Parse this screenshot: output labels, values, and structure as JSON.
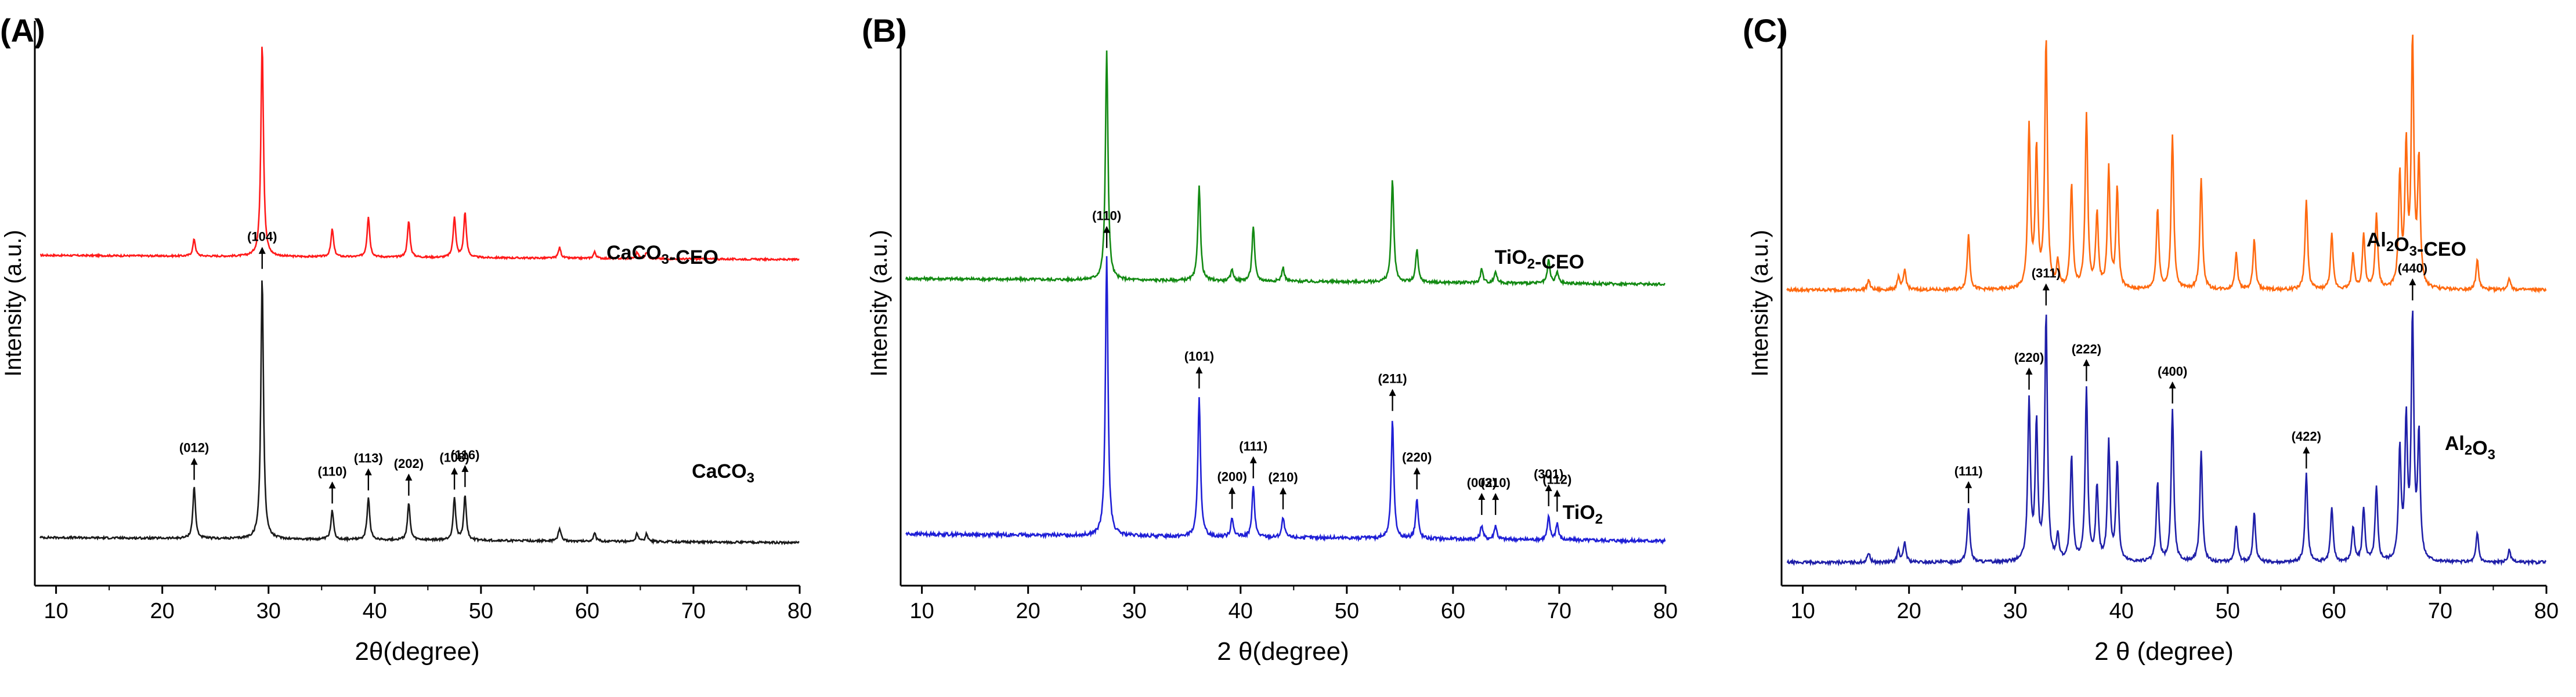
{
  "chart_data": [
    {
      "panel": "(A)",
      "type": "line",
      "xlabel": "2θ(degree)",
      "xlabel_italic_theta": true,
      "ylabel": "Intensity (a.u.)",
      "xlim": [
        8,
        80
      ],
      "xticks": [
        "10",
        "20",
        "30",
        "40",
        "50",
        "60",
        "70",
        "80"
      ],
      "series": [
        {
          "name": "CaCO3-CEO",
          "label_main": "CaCO",
          "label_sub": "3",
          "label_tail": "-CEO",
          "color": "#ff1a1a",
          "baseline": 0.04,
          "noise": 0.004,
          "peaks": [
            [
              23.0,
              0.08
            ],
            [
              29.4,
              1.0
            ],
            [
              36.0,
              0.13
            ],
            [
              39.4,
              0.19
            ],
            [
              43.2,
              0.17
            ],
            [
              47.5,
              0.19
            ],
            [
              48.5,
              0.21
            ],
            [
              57.4,
              0.05
            ],
            [
              60.7,
              0.03
            ],
            [
              64.7,
              0.03
            ],
            [
              65.6,
              0.03
            ]
          ]
        },
        {
          "name": "CaCO3",
          "label_main": "CaCO",
          "label_sub": "3",
          "label_tail": "",
          "color": "#1a1a1a",
          "baseline": 0.04,
          "noise": 0.004,
          "peaks": [
            [
              23.0,
              0.2
            ],
            [
              29.4,
              1.0
            ],
            [
              36.0,
              0.11
            ],
            [
              39.4,
              0.16
            ],
            [
              43.2,
              0.14
            ],
            [
              47.5,
              0.16
            ],
            [
              48.5,
              0.17
            ],
            [
              57.4,
              0.05
            ],
            [
              60.7,
              0.03
            ],
            [
              64.7,
              0.03
            ],
            [
              65.6,
              0.03
            ]
          ]
        }
      ],
      "annotations": [
        {
          "label": "(012)",
          "x": 23.0
        },
        {
          "label": "(104)",
          "x": 29.4
        },
        {
          "label": "(110)",
          "x": 36.0
        },
        {
          "label": "(113)",
          "x": 39.4
        },
        {
          "label": "(202)",
          "x": 43.2
        },
        {
          "label": "(108)",
          "x": 47.5
        },
        {
          "label": "(116)",
          "x": 48.5
        }
      ]
    },
    {
      "panel": "(B)",
      "type": "line",
      "xlabel": "2 θ(degree)",
      "xlabel_italic_theta": false,
      "ylabel": "Intensity (a.u.)",
      "xlim": [
        8,
        80
      ],
      "xticks": [
        "10",
        "20",
        "30",
        "40",
        "50",
        "60",
        "70",
        "80"
      ],
      "series": [
        {
          "name": "TiO2-CEO",
          "label_main": "TiO",
          "label_sub": "2",
          "label_tail": "-CEO",
          "color": "#138a13",
          "baseline": 0.05,
          "noise": 0.006,
          "peaks": [
            [
              27.4,
              1.0
            ],
            [
              36.1,
              0.42
            ],
            [
              39.2,
              0.05
            ],
            [
              41.2,
              0.24
            ],
            [
              44.0,
              0.06
            ],
            [
              54.3,
              0.45
            ],
            [
              56.6,
              0.14
            ],
            [
              62.7,
              0.06
            ],
            [
              64.0,
              0.05
            ],
            [
              69.0,
              0.1
            ],
            [
              69.8,
              0.05
            ]
          ]
        },
        {
          "name": "TiO2",
          "label_main": "TiO",
          "label_sub": "2",
          "label_tail": "",
          "color": "#1f1fd6",
          "baseline": 0.05,
          "noise": 0.006,
          "peaks": [
            [
              27.4,
              1.0
            ],
            [
              36.1,
              0.5
            ],
            [
              39.2,
              0.07
            ],
            [
              41.2,
              0.18
            ],
            [
              44.0,
              0.07
            ],
            [
              54.3,
              0.42
            ],
            [
              56.6,
              0.14
            ],
            [
              62.7,
              0.05
            ],
            [
              64.0,
              0.05
            ],
            [
              69.0,
              0.08
            ],
            [
              69.8,
              0.06
            ]
          ]
        }
      ],
      "annotations": [
        {
          "label": "(110)",
          "x": 27.4
        },
        {
          "label": "(101)",
          "x": 36.1
        },
        {
          "label": "(200)",
          "x": 39.2
        },
        {
          "label": "(111)",
          "x": 41.2
        },
        {
          "label": "(210)",
          "x": 44.0
        },
        {
          "label": "(211)",
          "x": 54.3
        },
        {
          "label": "(220)",
          "x": 56.6
        },
        {
          "label": "(002)",
          "x": 62.7
        },
        {
          "label": "(310)",
          "x": 64.0
        },
        {
          "label": "(301)",
          "x": 69.0
        },
        {
          "label": "(112)",
          "x": 69.8
        }
      ]
    },
    {
      "panel": "(C)",
      "type": "line",
      "xlabel": "2 θ (degree)",
      "xlabel_italic_theta": true,
      "ylabel": "Intensity (a.u.)",
      "xlim": [
        8,
        80
      ],
      "xticks": [
        "10",
        "20",
        "30",
        "40",
        "50",
        "60",
        "70",
        "80"
      ],
      "series": [
        {
          "name": "Al2O3-CEO",
          "label_main": "Al",
          "label_sub": "2",
          "label_tail": "O",
          "label_sub2": "3",
          "label_tail2": "-CEO",
          "color": "#ff6a10",
          "baseline": 0.0,
          "noise": 0.006,
          "peaks": [
            [
              16.2,
              0.04
            ],
            [
              19.0,
              0.05
            ],
            [
              19.6,
              0.08
            ],
            [
              25.6,
              0.22
            ],
            [
              31.3,
              0.65
            ],
            [
              32.0,
              0.55
            ],
            [
              32.9,
              1.0
            ],
            [
              34.0,
              0.1
            ],
            [
              35.3,
              0.42
            ],
            [
              36.7,
              0.7
            ],
            [
              37.7,
              0.3
            ],
            [
              38.8,
              0.48
            ],
            [
              39.6,
              0.4
            ],
            [
              43.4,
              0.32
            ],
            [
              44.8,
              0.62
            ],
            [
              47.5,
              0.45
            ],
            [
              50.8,
              0.15
            ],
            [
              52.5,
              0.2
            ],
            [
              57.4,
              0.36
            ],
            [
              59.8,
              0.22
            ],
            [
              61.8,
              0.14
            ],
            [
              62.8,
              0.22
            ],
            [
              64.0,
              0.3
            ],
            [
              66.2,
              0.45
            ],
            [
              66.8,
              0.55
            ],
            [
              67.4,
              0.98
            ],
            [
              68.0,
              0.5
            ],
            [
              73.5,
              0.12
            ],
            [
              76.5,
              0.05
            ]
          ]
        },
        {
          "name": "Al2O3",
          "label_main": "Al",
          "label_sub": "2",
          "label_tail": "O",
          "label_sub2": "3",
          "label_tail2": "",
          "color": "#1f1fa8",
          "baseline": 0.0,
          "noise": 0.006,
          "peaks": [
            [
              16.2,
              0.04
            ],
            [
              19.0,
              0.05
            ],
            [
              19.6,
              0.08
            ],
            [
              25.6,
              0.22
            ],
            [
              31.3,
              0.65
            ],
            [
              32.0,
              0.55
            ],
            [
              32.9,
              1.0
            ],
            [
              34.0,
              0.1
            ],
            [
              35.3,
              0.42
            ],
            [
              36.7,
              0.7
            ],
            [
              37.7,
              0.3
            ],
            [
              38.8,
              0.48
            ],
            [
              39.6,
              0.4
            ],
            [
              43.4,
              0.32
            ],
            [
              44.8,
              0.62
            ],
            [
              47.5,
              0.45
            ],
            [
              50.8,
              0.15
            ],
            [
              52.5,
              0.2
            ],
            [
              57.4,
              0.36
            ],
            [
              59.8,
              0.22
            ],
            [
              61.8,
              0.14
            ],
            [
              62.8,
              0.22
            ],
            [
              64.0,
              0.3
            ],
            [
              66.2,
              0.45
            ],
            [
              66.8,
              0.55
            ],
            [
              67.4,
              0.98
            ],
            [
              68.0,
              0.5
            ],
            [
              73.5,
              0.12
            ],
            [
              76.5,
              0.05
            ]
          ]
        }
      ],
      "annotations": [
        {
          "label": "(111)",
          "x": 25.6
        },
        {
          "label": "(220)",
          "x": 31.3
        },
        {
          "label": "(311)",
          "x": 32.9
        },
        {
          "label": "(222)",
          "x": 36.7
        },
        {
          "label": "(400)",
          "x": 44.8
        },
        {
          "label": "(422)",
          "x": 57.4
        },
        {
          "label": "(440)",
          "x": 67.4
        }
      ]
    }
  ]
}
